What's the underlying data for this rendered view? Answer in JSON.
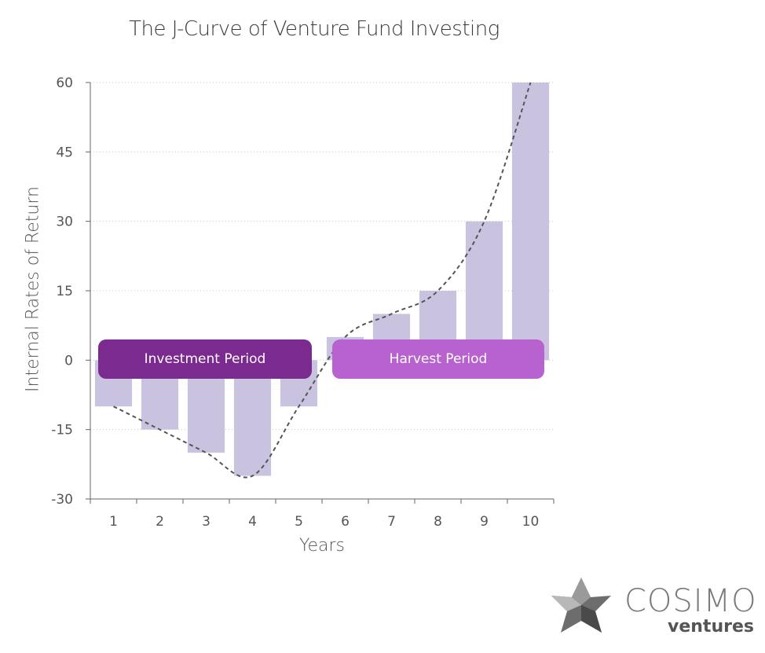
{
  "chart_data": {
    "type": "bar",
    "title": "The J-Curve of Venture Fund Investing",
    "xlabel": "Years",
    "ylabel": "Internal Rates of Return",
    "categories": [
      "1",
      "2",
      "3",
      "4",
      "5",
      "6",
      "7",
      "8",
      "9",
      "10"
    ],
    "values": [
      -10,
      -15,
      -20,
      -25,
      -10,
      5,
      10,
      15,
      30,
      60
    ],
    "ylim": [
      -30,
      60
    ],
    "yticks": [
      -30,
      -15,
      0,
      15,
      30,
      45,
      60
    ],
    "grid": true,
    "bar_color": "#c9c3e0",
    "trend_line": {
      "style": "dashed",
      "color": "#555555"
    },
    "annotations": [
      {
        "text": "Investment Period",
        "color": "#7b2a8f"
      },
      {
        "text": "Harvest Period",
        "color": "#b862cf"
      }
    ]
  },
  "logo": {
    "name": "COSIMO",
    "sub": "ventures"
  }
}
